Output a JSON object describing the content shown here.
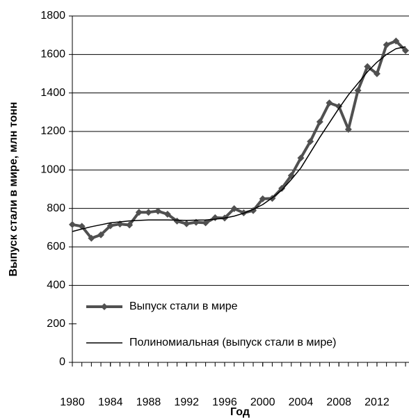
{
  "chart_data": {
    "type": "line",
    "x": [
      1980,
      1981,
      1982,
      1983,
      1984,
      1985,
      1986,
      1987,
      1988,
      1989,
      1990,
      1991,
      1992,
      1993,
      1994,
      1995,
      1996,
      1997,
      1998,
      1999,
      2000,
      2001,
      2002,
      2003,
      2004,
      2005,
      2006,
      2007,
      2008,
      2009,
      2010,
      2011,
      2012,
      2013,
      2014,
      2015
    ],
    "series": [
      {
        "name": "Выпуск стали в мире",
        "color": "#505050",
        "marker": "diamond",
        "values": [
          716,
          707,
          645,
          663,
          710,
          719,
          714,
          780,
          780,
          786,
          770,
          734,
          720,
          728,
          725,
          752,
          750,
          799,
          777,
          789,
          850,
          852,
          904,
          971,
          1062,
          1148,
          1250,
          1348,
          1330,
          1211,
          1413,
          1537,
          1500,
          1650,
          1670,
          1620
        ]
      },
      {
        "name": "Полиномиальная (выпуск стали в мире)",
        "color": "#000000",
        "values": [
          680,
          693,
          705,
          715,
          725,
          730,
          735,
          738,
          740,
          740,
          740,
          739,
          738,
          739,
          740,
          744,
          750,
          760,
          775,
          795,
          820,
          855,
          895,
          950,
          1010,
          1090,
          1170,
          1245,
          1320,
          1390,
          1450,
          1510,
          1560,
          1600,
          1630,
          1640
        ]
      }
    ],
    "xlim": [
      1980,
      2015
    ],
    "xticks": [
      1980,
      1984,
      1988,
      1992,
      1996,
      2000,
      2004,
      2008,
      2012
    ],
    "ylim": [
      0,
      1800
    ],
    "yticks": [
      0,
      200,
      400,
      600,
      800,
      1000,
      1200,
      1400,
      1600,
      1800
    ],
    "grid": true,
    "ylabel": "Выпуск стали в мире, млн тонн",
    "xlabel": "Год"
  }
}
